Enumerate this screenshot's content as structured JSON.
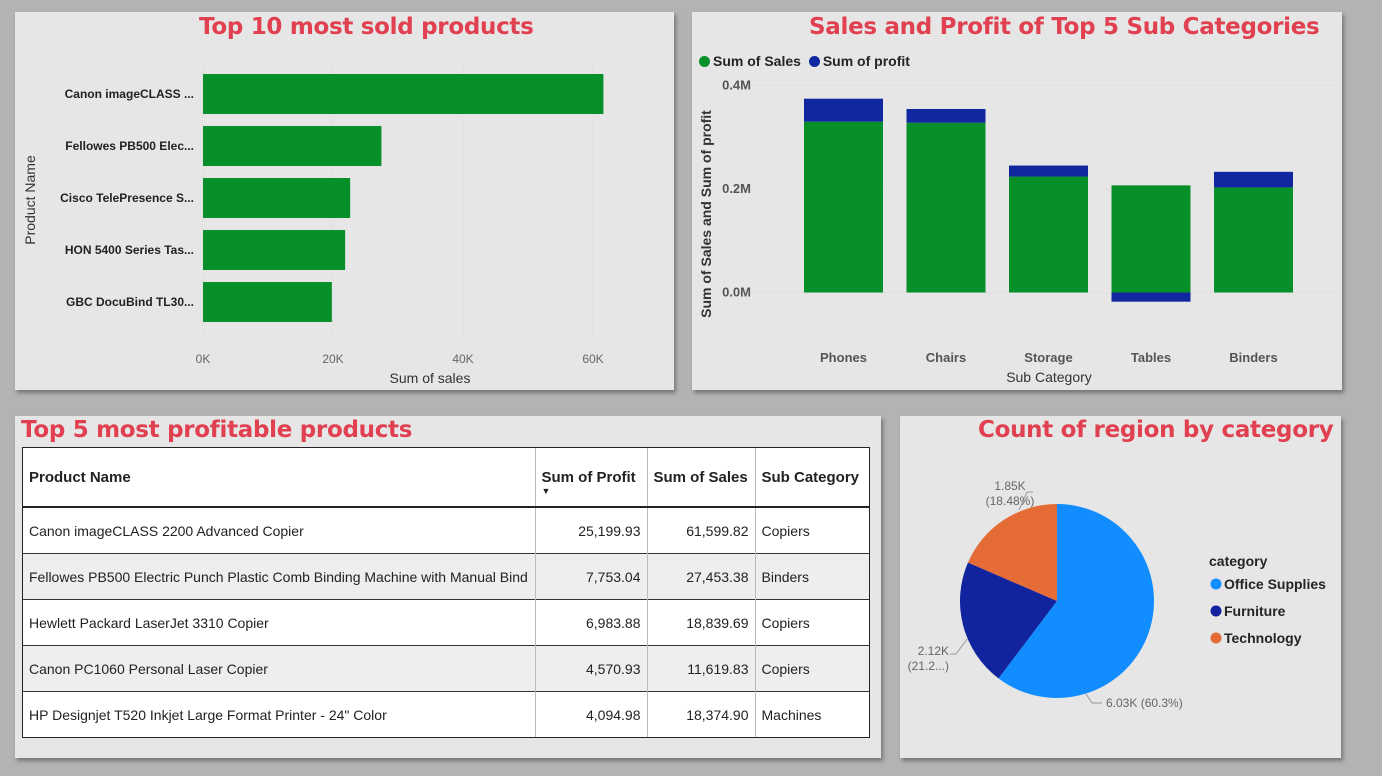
{
  "chart_data": [
    {
      "type": "bar",
      "orientation": "horizontal",
      "title": "Top 10 most sold products",
      "xlabel": "Sum of sales",
      "ylabel": "Product Name",
      "categories": [
        "Canon imageCLASS ...",
        "Fellowes PB500 Elec...",
        "Cisco TelePresence S...",
        "HON 5400 Series Tas...",
        "GBC DocuBind TL30..."
      ],
      "values": [
        61600,
        27450,
        22640,
        21870,
        19820
      ],
      "xlim": [
        0,
        70000
      ],
      "xticks": [
        "0K",
        "20K",
        "40K",
        "60K"
      ],
      "grid": true,
      "color": "#07902a"
    },
    {
      "type": "bar",
      "stacked": true,
      "title": "Sales and Profit of Top 5 Sub Categories",
      "xlabel": "Sub Category",
      "ylabel": "Sum of Sales and Sum of profit",
      "categories": [
        "Phones",
        "Chairs",
        "Storage",
        "Tables",
        "Binders"
      ],
      "series": [
        {
          "name": "Sum of Sales",
          "values": [
            330000,
            328000,
            224000,
            207000,
            203000
          ],
          "color": "#07902a"
        },
        {
          "name": "Sum of profit",
          "values": [
            44500,
            26600,
            21300,
            -17700,
            30200
          ],
          "color": "#1027a0"
        }
      ],
      "ylim": [
        -100000,
        400000
      ],
      "yticks": [
        "0.0M",
        "0.2M",
        "0.4M"
      ],
      "legend": "top-left",
      "grid": true
    },
    {
      "type": "table",
      "title": "Top 5 most profitable products",
      "columns": [
        "Product Name",
        "Sum of Profit",
        "Sum of Sales",
        "Sub Category"
      ],
      "sorted_column": "Sum of Profit",
      "rows": [
        [
          "Canon imageCLASS 2200 Advanced Copier",
          "25,199.93",
          "61,599.82",
          "Copiers"
        ],
        [
          "Fellowes PB500 Electric Punch Plastic Comb Binding Machine with Manual Bind",
          "7,753.04",
          "27,453.38",
          "Binders"
        ],
        [
          "Hewlett Packard LaserJet 3310 Copier",
          "6,983.88",
          "18,839.69",
          "Copiers"
        ],
        [
          "Canon PC1060 Personal Laser Copier",
          "4,570.93",
          "11,619.83",
          "Copiers"
        ],
        [
          "HP Designjet T520 Inkjet Large Format Printer - 24\" Color",
          "4,094.98",
          "18,374.90",
          "Machines"
        ]
      ]
    },
    {
      "type": "pie",
      "title": "Count of region by category",
      "legend_title": "category",
      "legend": "right",
      "slices": [
        {
          "name": "Office Supplies",
          "value": 6030,
          "percent": 60.3,
          "label_value": "6.03K",
          "label_pct": "(60.3%)",
          "color": "#118dff"
        },
        {
          "name": "Furniture",
          "value": 2120,
          "percent": 21.2,
          "label_value": "2.12K",
          "label_pct": "(21.2...)",
          "color": "#12239e"
        },
        {
          "name": "Technology",
          "value": 1850,
          "percent": 18.48,
          "label_value": "1.85K",
          "label_pct": "(18.48%)",
          "color": "#e66c37"
        }
      ]
    }
  ]
}
